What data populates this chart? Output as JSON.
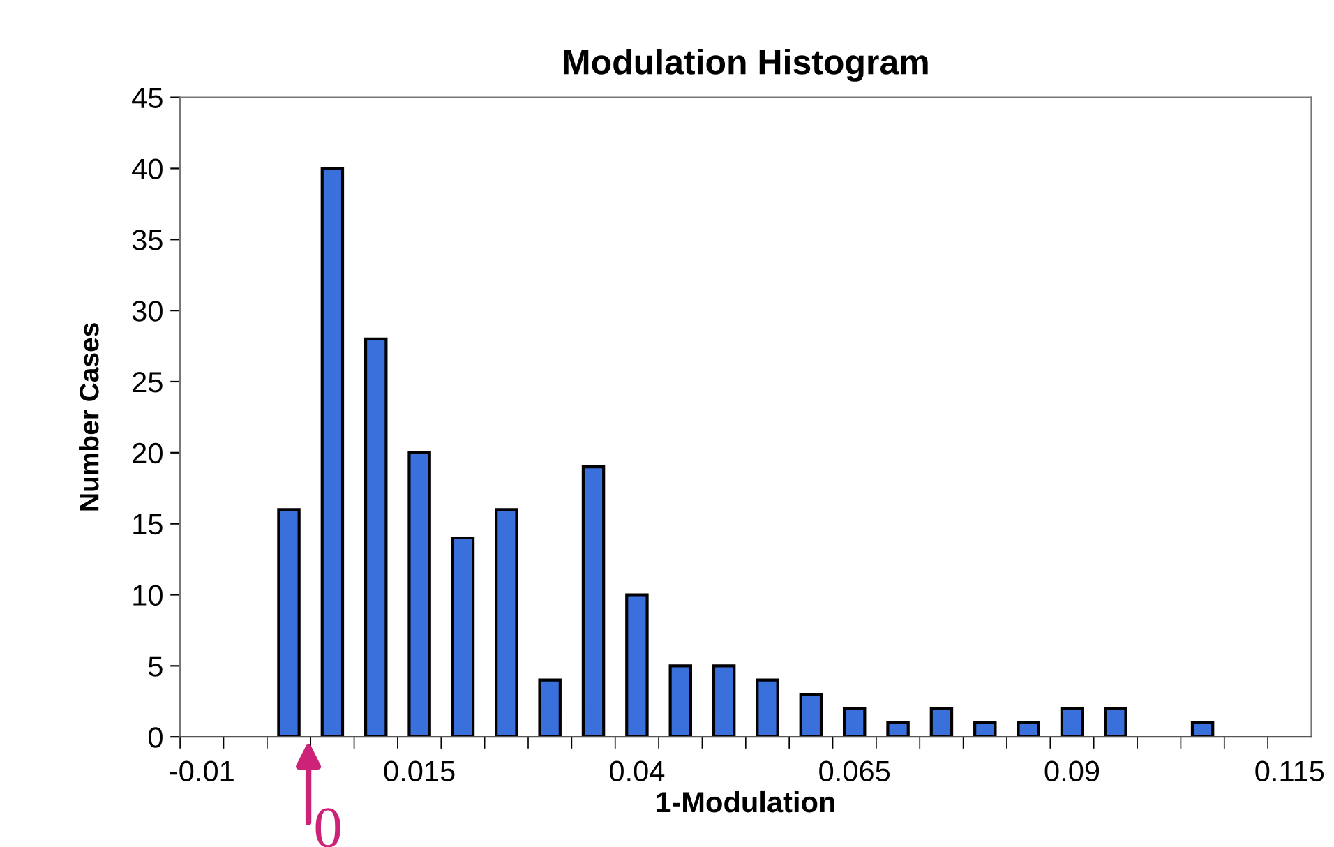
{
  "chart_data": {
    "type": "bar",
    "title": "Modulation Histogram",
    "xlabel": "1-Modulation",
    "ylabel": "Number Cases",
    "categories": [
      "-0.01",
      null,
      null,
      null,
      null,
      "0.015",
      null,
      null,
      null,
      null,
      "0.04",
      null,
      null,
      null,
      null,
      "0.065",
      null,
      null,
      null,
      null,
      "0.09",
      null,
      null,
      null,
      null,
      "0.115"
    ],
    "values": [
      0,
      0,
      16,
      40,
      28,
      20,
      14,
      16,
      4,
      19,
      10,
      5,
      5,
      4,
      3,
      2,
      1,
      2,
      1,
      1,
      2,
      2,
      0,
      1,
      0,
      0
    ],
    "color": "#3a70dc",
    "ylim": [
      0,
      45
    ],
    "yticks": [
      0,
      5,
      10,
      15,
      20,
      25,
      30,
      35,
      40,
      45
    ],
    "grid": false,
    "legend": false,
    "annotations": [
      "0"
    ]
  }
}
